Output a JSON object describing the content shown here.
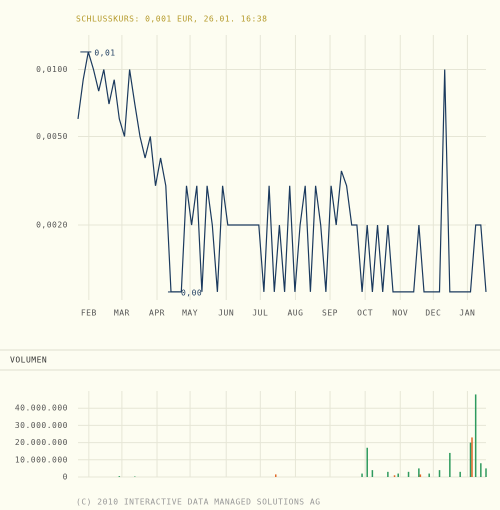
{
  "chart_data": [
    {
      "type": "line",
      "title": "SCHLUSSKURS: 0,001 EUR, 26.01. 16:38",
      "high_label": "0,01",
      "low_label": "0,00",
      "color": "#1b3a5e",
      "log_scale": true,
      "grid": true,
      "xlim": [
        0,
        79
      ],
      "xticks": [
        {
          "value": 2.1,
          "label": "FEB"
        },
        {
          "value": 8.5,
          "label": "MAR"
        },
        {
          "value": 15.3,
          "label": "APR"
        },
        {
          "value": 21.7,
          "label": "MAY"
        },
        {
          "value": 28.7,
          "label": "JUN"
        },
        {
          "value": 35.3,
          "label": "JUL"
        },
        {
          "value": 42.1,
          "label": "AUG"
        },
        {
          "value": 48.8,
          "label": "SEP"
        },
        {
          "value": 55.6,
          "label": "OCT"
        },
        {
          "value": 62.4,
          "label": "NOV"
        },
        {
          "value": 68.8,
          "label": "DEC"
        },
        {
          "value": 75.4,
          "label": "JAN"
        }
      ],
      "ylim": [
        0.00092,
        0.0143
      ],
      "yticks": [
        {
          "value": 0.002,
          "label": "0,0020"
        },
        {
          "value": 0.005,
          "label": "0,0050"
        },
        {
          "value": 0.01,
          "label": "0,0100"
        }
      ],
      "values": [
        0.006,
        0.009,
        0.012,
        0.01,
        0.008,
        0.01,
        0.007,
        0.009,
        0.006,
        0.005,
        0.01,
        0.007,
        0.005,
        0.004,
        0.005,
        0.003,
        0.004,
        0.003,
        0.001,
        0.001,
        0.001,
        0.003,
        0.002,
        0.003,
        0.001,
        0.003,
        0.002,
        0.001,
        0.003,
        0.002,
        0.002,
        0.002,
        0.002,
        0.002,
        0.002,
        0.002,
        0.001,
        0.003,
        0.001,
        0.002,
        0.001,
        0.003,
        0.001,
        0.002,
        0.003,
        0.001,
        0.003,
        0.002,
        0.001,
        0.003,
        0.002,
        0.0035,
        0.003,
        0.002,
        0.002,
        0.001,
        0.002,
        0.001,
        0.002,
        0.001,
        0.002,
        0.001,
        0.001,
        0.001,
        0.001,
        0.001,
        0.002,
        0.001,
        0.001,
        0.001,
        0.001,
        0.01,
        0.001,
        0.001,
        0.001,
        0.001,
        0.001,
        0.002,
        0.002,
        0.001
      ]
    },
    {
      "type": "bar",
      "title": "VOLUMEN",
      "footer": "(C) 2010 INTERACTIVE DATA MANAGED SOLUTIONS AG",
      "grid": true,
      "xlim": [
        0,
        79
      ],
      "xticks": [
        2.1,
        8.5,
        15.3,
        21.7,
        28.7,
        35.3,
        42.1,
        48.8,
        55.6,
        62.4,
        68.8,
        75.4
      ],
      "ylim": [
        0,
        50000000
      ],
      "yticks": [
        0,
        {
          "value": 10000000,
          "label": "10.000.000"
        },
        {
          "value": 20000000,
          "label": "20.000.000"
        },
        {
          "value": 30000000,
          "label": "30.000.000"
        },
        {
          "value": 40000000,
          "label": "40.000.000"
        }
      ],
      "series": [
        {
          "color": "#2e9a5e",
          "values": [
            0,
            0,
            0,
            0,
            0,
            0,
            0,
            0,
            500000,
            0,
            0,
            300000,
            0,
            0,
            0,
            0,
            0,
            0,
            0,
            0,
            0,
            0,
            0,
            0,
            0,
            0,
            0,
            0,
            0,
            0,
            0,
            0,
            0,
            0,
            0,
            0,
            0,
            0,
            0,
            0,
            0,
            0,
            0,
            0,
            0,
            0,
            0,
            0,
            0,
            0,
            0,
            0,
            0,
            0,
            0,
            2000000,
            17000000,
            4000000,
            0,
            0,
            3000000,
            0,
            2000000,
            0,
            3000000,
            0,
            5000000,
            0,
            2000000,
            0,
            4000000,
            0,
            14000000,
            0,
            3000000,
            0,
            20000000,
            48000000,
            8000000,
            5000000
          ]
        },
        {
          "color": "#e0692a",
          "values": [
            0,
            0,
            0,
            0,
            0,
            0,
            0,
            0,
            0,
            0,
            0,
            0,
            0,
            0,
            0,
            0,
            0,
            0,
            0,
            0,
            0,
            0,
            0,
            0,
            0,
            0,
            0,
            0,
            0,
            0,
            0,
            0,
            0,
            0,
            0,
            0,
            0,
            0,
            1500000,
            0,
            0,
            0,
            0,
            0,
            0,
            0,
            0,
            0,
            0,
            0,
            0,
            0,
            0,
            0,
            0,
            0,
            0,
            0,
            0,
            0,
            0,
            1000000,
            0,
            0,
            0,
            0,
            1500000,
            0,
            0,
            0,
            0,
            0,
            0,
            0,
            0,
            0,
            23000000,
            0,
            0,
            0
          ]
        }
      ]
    }
  ]
}
